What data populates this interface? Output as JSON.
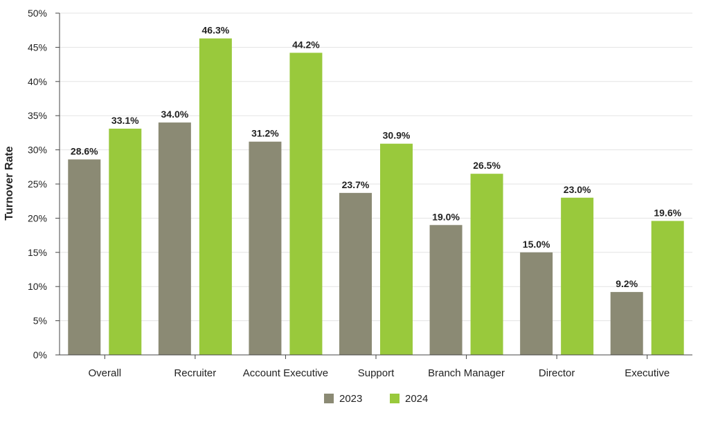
{
  "chart_data": {
    "type": "bar",
    "title": "",
    "xlabel": "",
    "ylabel": "Turnover Rate",
    "ylim": [
      0,
      50
    ],
    "yticks": [
      "0%",
      "5%",
      "10%",
      "15%",
      "20%",
      "25%",
      "30%",
      "35%",
      "40%",
      "45%",
      "50%"
    ],
    "grid": true,
    "legend_position": "bottom",
    "categories": [
      "Overall",
      "Recruiter",
      "Account Executive",
      "Support",
      "Branch Manager",
      "Director",
      "Executive"
    ],
    "series": [
      {
        "name": "2023",
        "color": "#8b8a74",
        "values": [
          28.6,
          34.0,
          31.2,
          23.7,
          19.0,
          15.0,
          9.2
        ],
        "labels": [
          "28.6%",
          "34.0%",
          "31.2%",
          "23.7%",
          "19.0%",
          "15.0%",
          "9.2%"
        ]
      },
      {
        "name": "2024",
        "color": "#99c93c",
        "values": [
          33.1,
          46.3,
          44.2,
          30.9,
          26.5,
          23.0,
          19.6
        ],
        "labels": [
          "33.1%",
          "46.3%",
          "44.2%",
          "30.9%",
          "26.5%",
          "23.0%",
          "19.6%"
        ]
      }
    ]
  }
}
